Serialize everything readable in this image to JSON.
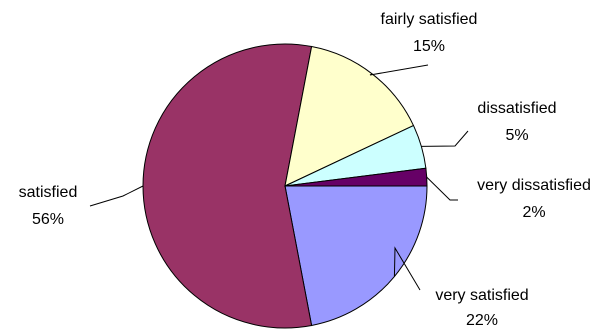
{
  "chart_data": {
    "type": "pie",
    "categories": [
      "very satisfied",
      "satisfied",
      "fairly satisfied",
      "dissatisfied",
      "very dissatisfied"
    ],
    "values": [
      22,
      56,
      15,
      5,
      2
    ],
    "value_labels": [
      "22%",
      "56%",
      "15%",
      "5%",
      "2%"
    ],
    "colors": [
      "#9999ff",
      "#993366",
      "#ffffcc",
      "#ccffff",
      "#660066"
    ],
    "start_angle_deg": 0,
    "direction": "clockwise-on-screen",
    "legend": "none",
    "title": ""
  }
}
